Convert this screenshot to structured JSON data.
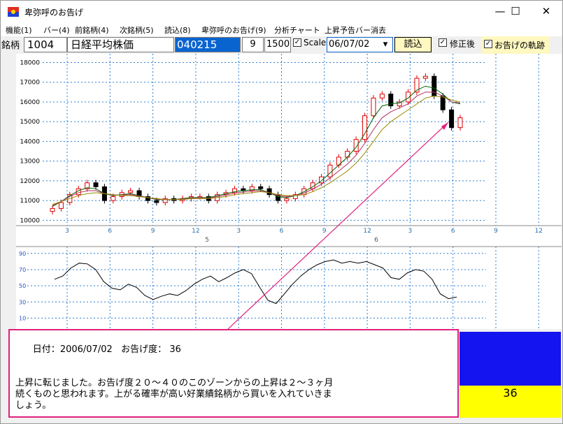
{
  "window": {
    "title": "卑弥呼のお告げ",
    "minimize": "—",
    "maximize": "☐",
    "close": "✕"
  },
  "menu": {
    "items": [
      "機能(1)",
      "バー(4)",
      "前銘柄(4)",
      "次銘柄(5)",
      "読込(8)",
      "卑弥呼のお告げ(9)",
      "分析チャート",
      "上昇予告バー消去"
    ]
  },
  "toolbar": {
    "label_meigara": "銘柄",
    "code": "1004",
    "name": "日経平均株価",
    "start_date": "040215",
    "bar_width": "9",
    "bar_count": "1500",
    "scale_label": "Scale",
    "scale_checked": "✓",
    "date": "06/07/02",
    "date_dropdown": "▾",
    "load_button": "読込",
    "corrected_label": "修正後",
    "corrected_checked": "✓",
    "trace_label": "お告げの軌跡",
    "trace_checked": "✓"
  },
  "chart_data": [
    {
      "type": "candlestick",
      "title": "",
      "y_ticks": [
        10000,
        11000,
        12000,
        13000,
        14000,
        15000,
        16000,
        17000,
        18000
      ],
      "ylim": [
        9800,
        18300
      ],
      "x_tick_labels": [
        "3",
        "6",
        "9",
        "12",
        "3",
        "6",
        "9",
        "12",
        "3",
        "6",
        "9",
        "12"
      ],
      "x_group_labels": [
        "5",
        "6"
      ],
      "grid": true,
      "close": [
        10600,
        10900,
        11300,
        11600,
        11900,
        11700,
        11000,
        11200,
        11400,
        11500,
        11200,
        11000,
        10900,
        11100,
        11000,
        11100,
        11200,
        11200,
        11000,
        11300,
        11400,
        11600,
        11500,
        11700,
        11600,
        11300,
        11000,
        11100,
        11300,
        11600,
        11900,
        12200,
        12800,
        13200,
        13500,
        14100,
        15300,
        16200,
        16400,
        15800,
        16000,
        16500,
        17200,
        17300,
        16300,
        15600,
        14700,
        15200
      ],
      "ma_short": [
        10700,
        10950,
        11250,
        11500,
        11650,
        11600,
        11350,
        11250,
        11300,
        11350,
        11250,
        11150,
        11050,
        11050,
        11050,
        11100,
        11150,
        11150,
        11150,
        11250,
        11350,
        11450,
        11500,
        11550,
        11550,
        11400,
        11200,
        11150,
        11250,
        11450,
        11700,
        12000,
        12400,
        12800,
        13200,
        13700,
        14400,
        15200,
        15800,
        15900,
        15950,
        16200,
        16600,
        16800,
        16700,
        16400,
        16000,
        15900
      ],
      "ma_long": [
        10800,
        10950,
        11100,
        11250,
        11350,
        11400,
        11350,
        11300,
        11250,
        11250,
        11200,
        11150,
        11100,
        11050,
        11050,
        11050,
        11100,
        11100,
        11100,
        11150,
        11200,
        11300,
        11350,
        11400,
        11450,
        11400,
        11300,
        11250,
        11250,
        11300,
        11450,
        11650,
        11900,
        12200,
        12500,
        12900,
        13400,
        14000,
        14600,
        15000,
        15300,
        15600,
        15900,
        16200,
        16300,
        16250,
        16100,
        16000
      ],
      "ma_mid": [
        10750,
        10950,
        11200,
        11400,
        11500,
        11500,
        11350,
        11280,
        11280,
        11300,
        11230,
        11150,
        11070,
        11050,
        11050,
        11080,
        11120,
        11130,
        11120,
        11200,
        11280,
        11380,
        11430,
        11480,
        11500,
        11400,
        11250,
        11200,
        11250,
        11380,
        11580,
        11820,
        12150,
        12500,
        12850,
        13300,
        13900,
        14600,
        15200,
        15500,
        15700,
        15900,
        16300,
        16500,
        16500,
        16300,
        16000,
        15950
      ]
    },
    {
      "type": "line",
      "title": "",
      "y_ticks": [
        10,
        30,
        50,
        70,
        90
      ],
      "ylim": [
        0,
        95
      ],
      "values": [
        58,
        62,
        72,
        78,
        77,
        70,
        55,
        47,
        45,
        52,
        48,
        38,
        33,
        37,
        40,
        38,
        44,
        52,
        58,
        62,
        55,
        60,
        66,
        70,
        65,
        48,
        32,
        28,
        40,
        52,
        62,
        70,
        76,
        80,
        82,
        78,
        80,
        78,
        80,
        76,
        72,
        60,
        58,
        66,
        70,
        68,
        58,
        40,
        34,
        36
      ]
    }
  ],
  "message": {
    "date_label": "日付：",
    "date_value": "2006/07/02",
    "level_label": "お告げ度：",
    "level_value": "36",
    "body": "上昇に転じました。お告げ度２０～４０のこのゾーンからの上昇は２～３ヶ月\n続くものと思われます。上がる確率が高い好業績銘柄から買いを入れていきま\nしょう。"
  },
  "indicator": {
    "value": "36",
    "top_color": "#1414f0",
    "bottom_color": "#ffff00"
  },
  "colors": {
    "up_candle": "#e00000",
    "down_candle": "#000000",
    "grid": "#2a7fd4",
    "arrow": "#e0207e",
    "ma_short": "#006400",
    "ma_long": "#9a8a00",
    "ma_mid": "#b03060"
  }
}
